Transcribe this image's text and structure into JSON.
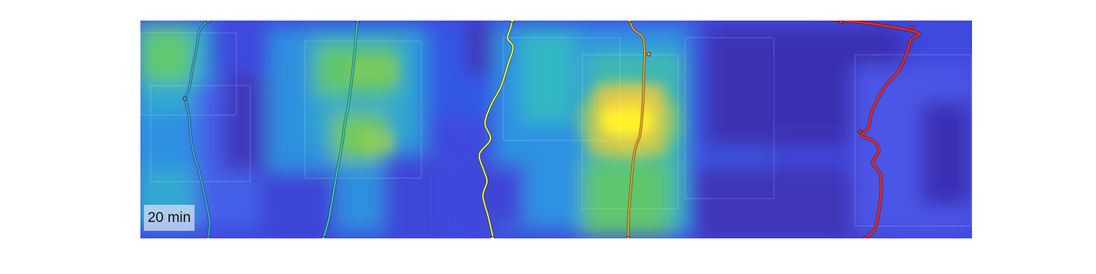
{
  "figure": {
    "time_label": "20 min"
  },
  "colors": {
    "background_dark": "#3f2fb8",
    "background_mid": "#4a4ee8",
    "cyan": "#1fb2c8",
    "green": "#75c95a",
    "yellow": "#ffe62c",
    "traces": [
      "#37a6d6",
      "#33c9b6",
      "#e5ef3c",
      "#f19d17",
      "#f0221b"
    ],
    "marker": "#333333"
  },
  "traces": [
    {
      "name": "trace-1",
      "color_key": 0
    },
    {
      "name": "trace-2",
      "color_key": 1
    },
    {
      "name": "trace-3",
      "color_key": 2
    },
    {
      "name": "trace-4",
      "color_key": 3
    },
    {
      "name": "trace-5",
      "color_key": 4
    }
  ]
}
